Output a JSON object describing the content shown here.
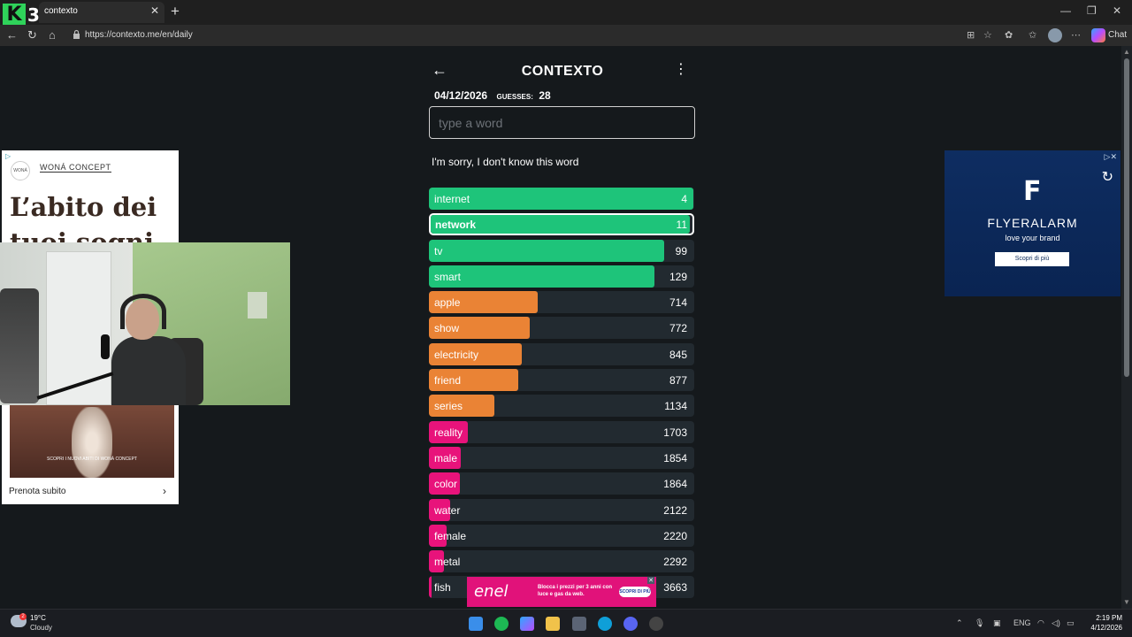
{
  "browser": {
    "tab_title": "contexto",
    "url": "https://contexto.me/en/daily",
    "chat_label": "Chat",
    "logo_k": "K",
    "logo_3": "3"
  },
  "game": {
    "title": "CONTEXTO",
    "date": "04/12/2026",
    "guesses_label": "GUESSES:",
    "guesses_count": "28",
    "input_placeholder": "type a word",
    "message": "I'm sorry, I don't know this word",
    "max_rank_reference": 3663,
    "guesses": [
      {
        "word": "internet",
        "rank": 4,
        "color": "green",
        "fill": 0.995,
        "selected": false
      },
      {
        "word": "network",
        "rank": 11,
        "color": "green",
        "fill": 0.99,
        "selected": true
      },
      {
        "word": "tv",
        "rank": 99,
        "color": "green",
        "fill": 0.885,
        "selected": false
      },
      {
        "word": "smart",
        "rank": 129,
        "color": "green",
        "fill": 0.85,
        "selected": false
      },
      {
        "word": "apple",
        "rank": 714,
        "color": "orange",
        "fill": 0.41,
        "selected": false
      },
      {
        "word": "show",
        "rank": 772,
        "color": "orange",
        "fill": 0.38,
        "selected": false
      },
      {
        "word": "electricity",
        "rank": 845,
        "color": "orange",
        "fill": 0.35,
        "selected": false
      },
      {
        "word": "friend",
        "rank": 877,
        "color": "orange",
        "fill": 0.335,
        "selected": false
      },
      {
        "word": "series",
        "rank": 1134,
        "color": "orange",
        "fill": 0.245,
        "selected": false
      },
      {
        "word": "reality",
        "rank": 1703,
        "color": "pink",
        "fill": 0.145,
        "selected": false
      },
      {
        "word": "male",
        "rank": 1854,
        "color": "pink",
        "fill": 0.12,
        "selected": false
      },
      {
        "word": "color",
        "rank": 1864,
        "color": "pink",
        "fill": 0.115,
        "selected": false
      },
      {
        "word": "water",
        "rank": 2122,
        "color": "pink",
        "fill": 0.08,
        "selected": false
      },
      {
        "word": "female",
        "rank": 2220,
        "color": "pink",
        "fill": 0.065,
        "selected": false
      },
      {
        "word": "metal",
        "rank": 2292,
        "color": "pink",
        "fill": 0.055,
        "selected": false
      },
      {
        "word": "fish",
        "rank": 3663,
        "color": "pink",
        "fill": 0.01,
        "selected": false
      }
    ],
    "colors": {
      "green": "#1ec47a",
      "orange": "#ea8335",
      "pink": "#e8137b"
    }
  },
  "ad_left": {
    "brand": "WONÁ CONCEPT",
    "brand_mark": "WONÁ",
    "headline": "L’abito dei tuoi sogni",
    "photo_caption": "SCOPRI I NUOVI ABITI DI WONÁ CONCEPT",
    "cta": "Prenota subito"
  },
  "ad_right": {
    "brand": "FLYERALARM",
    "tagline": "love your brand",
    "button": "Scopri di più"
  },
  "ad_bottom": {
    "logo": "enel",
    "text": "Blocca i prezzi per 3 anni con luce e gas da web.",
    "button": "SCOPRI DI PIÙ"
  },
  "taskbar": {
    "temperature": "19°C",
    "weather": "Cloudy",
    "weather_badge": "2",
    "language": "ENG",
    "time": "2:19 PM",
    "date": "4/12/2026"
  }
}
